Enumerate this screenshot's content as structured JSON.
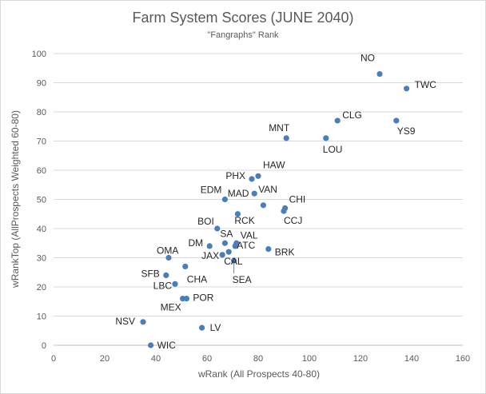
{
  "chart_data": {
    "type": "scatter",
    "title": "Farm System Scores (JUNE 2040)",
    "subtitle": "\"Fangraphs\" Rank",
    "xlabel": "wRank (All Prospects 40-80)",
    "ylabel": "wRankTop (AllProspects Weighted 60-80)",
    "xlim": [
      0,
      160
    ],
    "ylim": [
      0,
      100
    ],
    "xticks": [
      0,
      20,
      40,
      60,
      80,
      100,
      120,
      140,
      160
    ],
    "yticks": [
      0,
      10,
      20,
      30,
      40,
      50,
      60,
      70,
      80,
      90,
      100
    ],
    "grid": "horizontal",
    "marker_color": "#4a7ebb",
    "points": [
      {
        "label": "NO",
        "x": 127.5,
        "y": 93
      },
      {
        "label": "TWC",
        "x": 138,
        "y": 88
      },
      {
        "label": "CLG",
        "x": 111,
        "y": 77
      },
      {
        "label": "YS9",
        "x": 134,
        "y": 77
      },
      {
        "label": "MNT",
        "x": 91,
        "y": 71
      },
      {
        "label": "LOU",
        "x": 106.5,
        "y": 71
      },
      {
        "label": "HAW",
        "x": 80,
        "y": 58
      },
      {
        "label": "PHX",
        "x": 77.5,
        "y": 57
      },
      {
        "label": "VAN",
        "x": 78.5,
        "y": 52
      },
      {
        "label": "EDM",
        "x": 67,
        "y": 50
      },
      {
        "label": "CHI",
        "x": 90.5,
        "y": 47
      },
      {
        "label": "CCJ",
        "x": 90,
        "y": 46
      },
      {
        "label": "MAD",
        "x": 82,
        "y": 48
      },
      {
        "label": "RCK",
        "x": 72,
        "y": 45
      },
      {
        "label": "BOI",
        "x": 64,
        "y": 40
      },
      {
        "label": "SA",
        "x": 67,
        "y": 35
      },
      {
        "label": "VAL",
        "x": 71.5,
        "y": 35
      },
      {
        "label": "DM",
        "x": 61,
        "y": 34
      },
      {
        "label": "ATC",
        "x": 71,
        "y": 34
      },
      {
        "label": "BRK",
        "x": 84,
        "y": 33
      },
      {
        "label": "JAX",
        "x": 68.5,
        "y": 32
      },
      {
        "label": "CAL",
        "x": 66,
        "y": 31
      },
      {
        "label": "OMA",
        "x": 45,
        "y": 30
      },
      {
        "label": "SEA",
        "x": 70.5,
        "y": 29
      },
      {
        "label": "CHA",
        "x": 51.5,
        "y": 27
      },
      {
        "label": "SFB",
        "x": 44,
        "y": 24
      },
      {
        "label": "LBC",
        "x": 47.5,
        "y": 21
      },
      {
        "label": "POR",
        "x": 52,
        "y": 16
      },
      {
        "label": "MEX",
        "x": 50.5,
        "y": 16
      },
      {
        "label": "NSV",
        "x": 35,
        "y": 8
      },
      {
        "label": "LV",
        "x": 58,
        "y": 6
      },
      {
        "label": "WIC",
        "x": 38,
        "y": 0
      }
    ]
  }
}
